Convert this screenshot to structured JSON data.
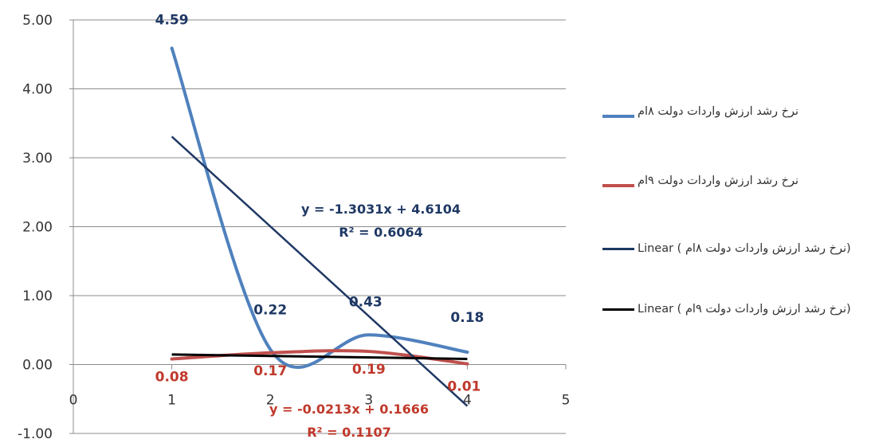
{
  "chart_data": {
    "type": "line",
    "xlim": [
      0,
      5
    ],
    "ylim": [
      -1,
      5
    ],
    "x_ticks": [
      "0",
      "1",
      "2",
      "3",
      "4",
      "5"
    ],
    "y_ticks": [
      "5.00",
      "4.00",
      "3.00",
      "2.00",
      "1.00",
      "0.00",
      "-1.00"
    ],
    "grid": "horizontal",
    "legend_position": "right",
    "x": [
      1,
      2,
      3,
      4
    ],
    "series": [
      {
        "name": "نرخ رشد ارزش واردات دولت ۸ام",
        "color": "#4f81bd",
        "values": [
          4.59,
          0.22,
          0.43,
          0.18
        ],
        "labels": [
          "4.59",
          "0.22",
          "0.43",
          "0.18"
        ]
      },
      {
        "name": "نرخ رشد ارزش واردات دولت ۹ام",
        "color": "#c0504d",
        "values": [
          0.08,
          0.17,
          0.19,
          0.01
        ],
        "labels": [
          "0.08",
          "0.17",
          "0.19",
          "0.01"
        ]
      }
    ],
    "trendlines": [
      {
        "name": "Linear ( نرخ رشد ارزش واردات دولت ۸ام)",
        "color": "#1f3864",
        "slope": -1.3031,
        "intercept": 4.6104,
        "equation": "y = -1.3031x + 4.6104",
        "r2": "R² = 0.6064"
      },
      {
        "name": "Linear ( نرخ رشد ارزش واردات دولت ۹ام)",
        "color": "#000000",
        "slope": -0.0213,
        "intercept": 0.1666,
        "equation": "y = -0.0213x + 0.1666",
        "r2": "R² = 0.1107"
      }
    ]
  }
}
